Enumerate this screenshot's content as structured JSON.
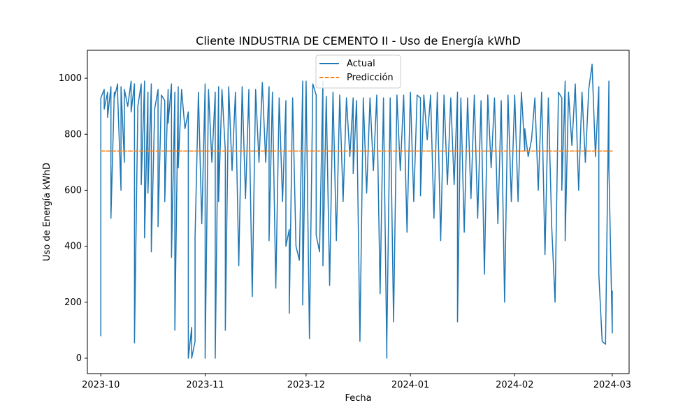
{
  "chart_data": {
    "type": "line",
    "title": "Cliente INDUSTRIA DE CEMENTO II - Uso de Energía kWhD",
    "xlabel": "Fecha",
    "ylabel": "Uso de Energía kWhD",
    "xlim": [
      "2023-09-27",
      "2024-03-06"
    ],
    "ylim": [
      -55,
      1100
    ],
    "x_ticks": [
      "2023-10",
      "2023-11",
      "2023-12",
      "2024-01",
      "2024-02",
      "2024-03"
    ],
    "y_ticks": [
      0,
      200,
      400,
      600,
      800,
      1000
    ],
    "legend": {
      "placement": "top-center",
      "entries": [
        "Actual",
        "Predicción"
      ]
    },
    "grid": false,
    "series": [
      {
        "name": "Actual",
        "style": "solid",
        "color": "#1f77b4",
        "points": [
          [
            "2023-10-01",
            80
          ],
          [
            "2023-10-01",
            400
          ],
          [
            "2023-10-01",
            410
          ],
          [
            "2023-10-01",
            930
          ],
          [
            "2023-10-02",
            960
          ],
          [
            "2023-10-02",
            890
          ],
          [
            "2023-10-03",
            950
          ],
          [
            "2023-10-03",
            860
          ],
          [
            "2023-10-04",
            970
          ],
          [
            "2023-10-04",
            500
          ],
          [
            "2023-10-05",
            950
          ],
          [
            "2023-10-05",
            930
          ],
          [
            "2023-10-06",
            980
          ],
          [
            "2023-10-06",
            940
          ],
          [
            "2023-10-07",
            600
          ],
          [
            "2023-10-07",
            970
          ],
          [
            "2023-10-08",
            700
          ],
          [
            "2023-10-08",
            960
          ],
          [
            "2023-10-09",
            900
          ],
          [
            "2023-10-10",
            990
          ],
          [
            "2023-10-10",
            880
          ],
          [
            "2023-10-11",
            980
          ],
          [
            "2023-10-11",
            55
          ],
          [
            "2023-10-12",
            900
          ],
          [
            "2023-10-13",
            980
          ],
          [
            "2023-10-13",
            620
          ],
          [
            "2023-10-14",
            990
          ],
          [
            "2023-10-14",
            430
          ],
          [
            "2023-10-15",
            950
          ],
          [
            "2023-10-15",
            590
          ],
          [
            "2023-10-16",
            980
          ],
          [
            "2023-10-16",
            380
          ],
          [
            "2023-10-17",
            890
          ],
          [
            "2023-10-18",
            960
          ],
          [
            "2023-10-18",
            470
          ],
          [
            "2023-10-19",
            940
          ],
          [
            "2023-10-20",
            920
          ],
          [
            "2023-10-20",
            560
          ],
          [
            "2023-10-21",
            960
          ],
          [
            "2023-10-21",
            840
          ],
          [
            "2023-10-22",
            980
          ],
          [
            "2023-10-22",
            360
          ],
          [
            "2023-10-23",
            950
          ],
          [
            "2023-10-23",
            100
          ],
          [
            "2023-10-24",
            970
          ],
          [
            "2023-10-24",
            680
          ],
          [
            "2023-10-25",
            960
          ],
          [
            "2023-10-26",
            820
          ],
          [
            "2023-10-27",
            880
          ],
          [
            "2023-10-27",
            0
          ],
          [
            "2023-10-28",
            110
          ],
          [
            "2023-10-28",
            0
          ],
          [
            "2023-10-29",
            60
          ],
          [
            "2023-10-29",
            430
          ],
          [
            "2023-10-30",
            950
          ],
          [
            "2023-10-31",
            480
          ],
          [
            "2023-11-01",
            980
          ],
          [
            "2023-11-01",
            0
          ],
          [
            "2023-11-02",
            960
          ],
          [
            "2023-11-03",
            700
          ],
          [
            "2023-11-04",
            950
          ],
          [
            "2023-11-04",
            0
          ],
          [
            "2023-11-05",
            970
          ],
          [
            "2023-11-05",
            560
          ],
          [
            "2023-11-06",
            960
          ],
          [
            "2023-11-07",
            740
          ],
          [
            "2023-11-07",
            100
          ],
          [
            "2023-11-08",
            970
          ],
          [
            "2023-11-09",
            670
          ],
          [
            "2023-11-10",
            950
          ],
          [
            "2023-11-11",
            330
          ],
          [
            "2023-11-12",
            970
          ],
          [
            "2023-11-13",
            570
          ],
          [
            "2023-11-14",
            960
          ],
          [
            "2023-11-14",
            920
          ],
          [
            "2023-11-15",
            220
          ],
          [
            "2023-11-16",
            960
          ],
          [
            "2023-11-17",
            700
          ],
          [
            "2023-11-18",
            985
          ],
          [
            "2023-11-19",
            700
          ],
          [
            "2023-11-20",
            970
          ],
          [
            "2023-11-20",
            420
          ],
          [
            "2023-11-21",
            950
          ],
          [
            "2023-11-22",
            250
          ],
          [
            "2023-11-23",
            930
          ],
          [
            "2023-11-24",
            560
          ],
          [
            "2023-11-25",
            920
          ],
          [
            "2023-11-25",
            400
          ],
          [
            "2023-11-26",
            460
          ],
          [
            "2023-11-26",
            160
          ],
          [
            "2023-11-27",
            930
          ],
          [
            "2023-11-28",
            400
          ],
          [
            "2023-11-29",
            350
          ],
          [
            "2023-11-30",
            990
          ],
          [
            "2023-11-30",
            190
          ],
          [
            "2023-12-01",
            990
          ],
          [
            "2023-12-02",
            70
          ],
          [
            "2023-12-03",
            980
          ],
          [
            "2023-12-04",
            940
          ],
          [
            "2023-12-04",
            440
          ],
          [
            "2023-12-05",
            380
          ],
          [
            "2023-12-06",
            990
          ],
          [
            "2023-12-06",
            330
          ],
          [
            "2023-12-07",
            935
          ],
          [
            "2023-12-08",
            260
          ],
          [
            "2023-12-09",
            950
          ],
          [
            "2023-12-10",
            420
          ],
          [
            "2023-12-11",
            940
          ],
          [
            "2023-12-12",
            560
          ],
          [
            "2023-12-13",
            930
          ],
          [
            "2023-12-14",
            720
          ],
          [
            "2023-12-15",
            930
          ],
          [
            "2023-12-15",
            660
          ],
          [
            "2023-12-16",
            920
          ],
          [
            "2023-12-17",
            60
          ],
          [
            "2023-12-18",
            930
          ],
          [
            "2023-12-19",
            590
          ],
          [
            "2023-12-20",
            930
          ],
          [
            "2023-12-21",
            670
          ],
          [
            "2023-12-22",
            940
          ],
          [
            "2023-12-23",
            230
          ],
          [
            "2023-12-24",
            930
          ],
          [
            "2023-12-25",
            0
          ],
          [
            "2023-12-25",
            60
          ],
          [
            "2023-12-26",
            930
          ],
          [
            "2023-12-27",
            130
          ],
          [
            "2023-12-28",
            940
          ],
          [
            "2023-12-29",
            670
          ],
          [
            "2023-12-30",
            940
          ],
          [
            "2023-12-31",
            450
          ],
          [
            "2024-01-01",
            950
          ],
          [
            "2024-01-02",
            560
          ],
          [
            "2024-01-03",
            940
          ],
          [
            "2024-01-04",
            930
          ],
          [
            "2024-01-04",
            580
          ],
          [
            "2024-01-05",
            940
          ],
          [
            "2024-01-06",
            780
          ],
          [
            "2024-01-07",
            940
          ],
          [
            "2024-01-08",
            500
          ],
          [
            "2024-01-09",
            950
          ],
          [
            "2024-01-10",
            420
          ],
          [
            "2024-01-11",
            940
          ],
          [
            "2024-01-12",
            620
          ],
          [
            "2024-01-13",
            930
          ],
          [
            "2024-01-14",
            620
          ],
          [
            "2024-01-15",
            950
          ],
          [
            "2024-01-15",
            130
          ],
          [
            "2024-01-16",
            930
          ],
          [
            "2024-01-17",
            450
          ],
          [
            "2024-01-18",
            930
          ],
          [
            "2024-01-19",
            570
          ],
          [
            "2024-01-20",
            940
          ],
          [
            "2024-01-21",
            500
          ],
          [
            "2024-01-22",
            920
          ],
          [
            "2024-01-23",
            300
          ],
          [
            "2024-01-24",
            940
          ],
          [
            "2024-01-25",
            680
          ],
          [
            "2024-01-26",
            930
          ],
          [
            "2024-01-27",
            480
          ],
          [
            "2024-01-28",
            920
          ],
          [
            "2024-01-29",
            200
          ],
          [
            "2024-01-30",
            940
          ],
          [
            "2024-01-31",
            560
          ],
          [
            "2024-02-01",
            940
          ],
          [
            "2024-02-02",
            560
          ],
          [
            "2024-02-03",
            950
          ],
          [
            "2024-02-04",
            740
          ],
          [
            "2024-02-04",
            820
          ],
          [
            "2024-02-05",
            720
          ],
          [
            "2024-02-06",
            780
          ],
          [
            "2024-02-07",
            930
          ],
          [
            "2024-02-08",
            600
          ],
          [
            "2024-02-09",
            950
          ],
          [
            "2024-02-10",
            370
          ],
          [
            "2024-02-11",
            930
          ],
          [
            "2024-02-12",
            470
          ],
          [
            "2024-02-13",
            200
          ],
          [
            "2024-02-14",
            950
          ],
          [
            "2024-02-15",
            930
          ],
          [
            "2024-02-15",
            600
          ],
          [
            "2024-02-16",
            990
          ],
          [
            "2024-02-16",
            420
          ],
          [
            "2024-02-17",
            950
          ],
          [
            "2024-02-18",
            760
          ],
          [
            "2024-02-19",
            980
          ],
          [
            "2024-02-20",
            600
          ],
          [
            "2024-02-21",
            950
          ],
          [
            "2024-02-22",
            700
          ],
          [
            "2024-02-23",
            960
          ],
          [
            "2024-02-24",
            1050
          ],
          [
            "2024-02-25",
            720
          ],
          [
            "2024-02-26",
            970
          ],
          [
            "2024-02-26",
            300
          ],
          [
            "2024-02-27",
            60
          ],
          [
            "2024-02-28",
            50
          ],
          [
            "2024-02-29",
            990
          ],
          [
            "2024-02-29",
            680
          ],
          [
            "2024-03-01",
            90
          ],
          [
            "2024-03-01",
            240
          ]
        ]
      },
      {
        "name": "Predicción",
        "style": "dashed",
        "color": "#ff7f0e",
        "points": [
          [
            "2023-10-01",
            740
          ],
          [
            "2024-03-01",
            740
          ]
        ]
      }
    ]
  }
}
